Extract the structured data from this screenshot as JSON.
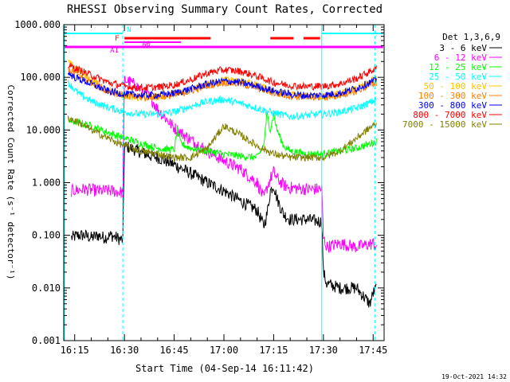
{
  "chart_data": {
    "type": "line",
    "title": "RHESSI Observing Summary Count Rates, Corrected",
    "xlabel": "Start Time (04-Sep-14 16:11:42)",
    "ylabel": "Corrected Count Rate (s⁻¹ detector⁻¹)",
    "y_scale": "log",
    "ylim": [
      0.001,
      1000
    ],
    "xlim_minutes": [
      11.7,
      108.3
    ],
    "y_ticks": [
      "0.001",
      "0.010",
      "0.100",
      "1.000",
      "10.000",
      "100.000",
      "1000.000"
    ],
    "x_ticks": [
      {
        "min": 15,
        "label": "16:15"
      },
      {
        "min": 30,
        "label": "16:30"
      },
      {
        "min": 45,
        "label": "16:45"
      },
      {
        "min": 60,
        "label": "17:00"
      },
      {
        "min": 75,
        "label": "17:15"
      },
      {
        "min": 90,
        "label": "17:30"
      },
      {
        "min": 105,
        "label": "17:45"
      }
    ],
    "legend_title": "Det 1,3,6,9",
    "legend_position": "right",
    "grid": false,
    "series": [
      {
        "name": "3 - 6 keV",
        "color": "#000000",
        "x": [
          14,
          16,
          18,
          20,
          22,
          24,
          26,
          29.5,
          30,
          32,
          35,
          38,
          40,
          45,
          50,
          55,
          60,
          65,
          70,
          72,
          73,
          74,
          75,
          76,
          77,
          78,
          80,
          85,
          89.5,
          90,
          91,
          95,
          100,
          104,
          105,
          106
        ],
        "y": [
          0.09,
          0.1,
          0.1,
          0.09,
          0.1,
          0.09,
          0.1,
          0.08,
          5,
          4.5,
          3.8,
          3.2,
          3.0,
          2.2,
          1.5,
          1.0,
          0.7,
          0.45,
          0.3,
          0.15,
          0.25,
          0.7,
          0.9,
          0.5,
          0.35,
          0.25,
          0.2,
          0.2,
          0.18,
          0.02,
          0.012,
          0.01,
          0.01,
          0.005,
          0.008,
          0.01
        ]
      },
      {
        "name": "6 - 12 keV",
        "color": "#ff00ff",
        "x": [
          14,
          18,
          22,
          26,
          29.5,
          30,
          32,
          35,
          38,
          40,
          45,
          50,
          55,
          60,
          65,
          70,
          72,
          73,
          74,
          75,
          76,
          78,
          80,
          85,
          89.5,
          90,
          91,
          95,
          100,
          105,
          106
        ],
        "y": [
          0.7,
          0.75,
          0.7,
          0.7,
          0.65,
          90,
          80,
          60,
          40,
          25,
          11,
          6.5,
          4,
          2.6,
          1.8,
          1.0,
          0.5,
          0.8,
          1.2,
          1.6,
          1.2,
          0.9,
          0.8,
          0.75,
          0.75,
          0.09,
          0.06,
          0.07,
          0.06,
          0.07,
          0.06
        ]
      },
      {
        "name": "12 - 25 keV",
        "color": "#00ff00",
        "x": [
          13,
          16,
          20,
          25,
          30,
          32,
          35,
          40,
          45,
          46,
          47,
          50,
          55,
          60,
          65,
          70,
          72,
          73,
          74,
          75,
          76,
          78,
          80,
          85,
          90,
          95,
          100,
          104,
          106
        ],
        "y": [
          15,
          14,
          12,
          9,
          7,
          6.5,
          5.5,
          4.5,
          4.2,
          10,
          5.5,
          4.5,
          4.0,
          3.5,
          3.2,
          3.0,
          5,
          20,
          10,
          20,
          10,
          5,
          4,
          3.5,
          3.5,
          4.0,
          4.5,
          5.5,
          6
        ]
      },
      {
        "name": "25 - 50 keV",
        "color": "#00ffff",
        "x": [
          13,
          16,
          20,
          25,
          30,
          35,
          40,
          45,
          50,
          55,
          60,
          65,
          70,
          75,
          80,
          85,
          90,
          95,
          100,
          104,
          106
        ],
        "y": [
          80,
          50,
          35,
          27,
          22,
          20,
          20,
          22,
          28,
          35,
          38,
          32,
          26,
          21,
          18,
          19,
          20,
          22,
          26,
          33,
          38
        ]
      },
      {
        "name": "50 - 100 keV",
        "color": "#ffc000",
        "x": [
          13,
          15,
          20,
          25,
          30,
          35,
          40,
          45,
          50,
          55,
          60,
          65,
          70,
          75,
          80,
          85,
          90,
          95,
          100,
          106
        ],
        "y": [
          200,
          160,
          90,
          55,
          45,
          40,
          42,
          48,
          58,
          75,
          90,
          85,
          70,
          55,
          47,
          44,
          43,
          48,
          60,
          95
        ]
      },
      {
        "name": "100 - 300 keV",
        "color": "#ff8000",
        "x": [
          13,
          15,
          20,
          25,
          30,
          35,
          40,
          45,
          50,
          55,
          60,
          65,
          70,
          75,
          80,
          85,
          90,
          95,
          100,
          106
        ],
        "y": [
          140,
          120,
          80,
          55,
          45,
          42,
          43,
          45,
          55,
          70,
          80,
          75,
          63,
          50,
          44,
          42,
          42,
          45,
          55,
          80
        ]
      },
      {
        "name": "300 - 800 keV",
        "color": "#0000ff",
        "x": [
          13,
          15,
          20,
          25,
          30,
          35,
          40,
          45,
          50,
          55,
          60,
          65,
          70,
          75,
          80,
          85,
          90,
          95,
          100,
          106
        ],
        "y": [
          120,
          100,
          75,
          55,
          48,
          46,
          46,
          50,
          60,
          75,
          85,
          80,
          68,
          55,
          48,
          45,
          46,
          50,
          62,
          90
        ]
      },
      {
        "name": "800 - 7000 keV",
        "color": "#ff0000",
        "x": [
          13,
          15,
          20,
          25,
          30,
          35,
          40,
          45,
          50,
          55,
          60,
          65,
          70,
          75,
          80,
          85,
          90,
          95,
          100,
          106
        ],
        "y": [
          170,
          150,
          110,
          80,
          68,
          63,
          65,
          72,
          90,
          120,
          140,
          130,
          105,
          80,
          70,
          67,
          68,
          75,
          95,
          150
        ]
      },
      {
        "name": "7000 - 15000 keV",
        "color": "#808000",
        "x": [
          13,
          16,
          20,
          25,
          30,
          35,
          40,
          45,
          50,
          55,
          60,
          65,
          70,
          75,
          80,
          85,
          90,
          95,
          100,
          104,
          106
        ],
        "y": [
          17,
          14,
          10,
          7,
          5,
          4,
          3.5,
          3,
          3,
          4.5,
          12,
          8,
          5,
          3.5,
          3,
          3,
          3,
          4,
          7,
          11,
          13
        ]
      }
    ]
  },
  "labels": {
    "legend_title": "Det 1,3,6,9",
    "flags": [
      {
        "name": "N",
        "color": "#00ffff"
      },
      {
        "name": "F",
        "color": "#ff0000"
      },
      {
        "name": "A0",
        "color": "#ff00ff"
      },
      {
        "name": "A1",
        "color": "#ff00ff"
      }
    ],
    "flag_intervals": {
      "N": [
        [
          12,
          29.5
        ],
        [
          89.5,
          108
        ]
      ],
      "F": [
        [
          30,
          56
        ],
        [
          74,
          81
        ],
        [
          84,
          89
        ]
      ],
      "A0": [
        [
          30,
          47
        ]
      ],
      "A1": [
        [
          12,
          108
        ]
      ]
    },
    "timestamp": "19-Oct-2021 14:32"
  }
}
